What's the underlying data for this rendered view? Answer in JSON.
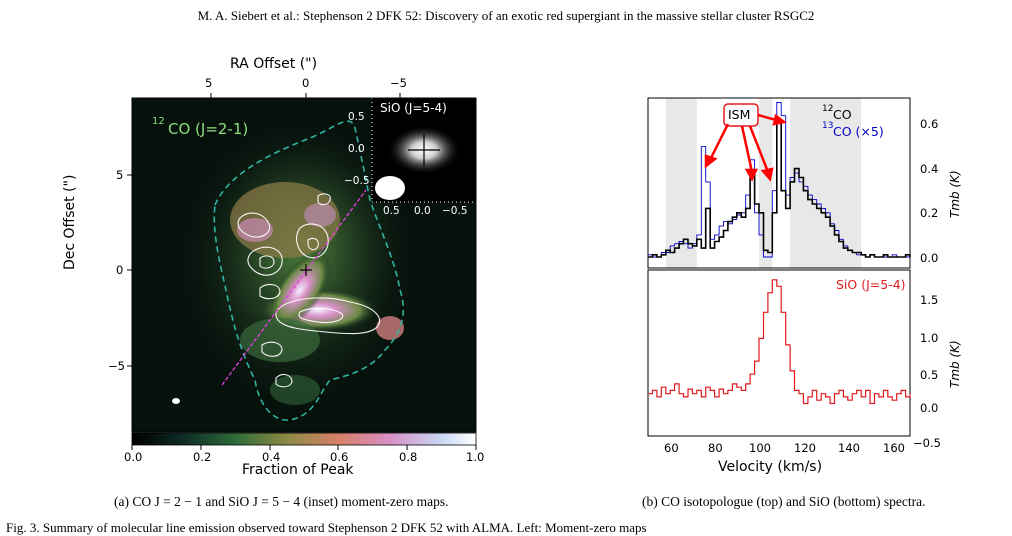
{
  "header": "M. A. Siebert et al.: Stephenson 2 DFK 52: Discovery of an exotic red supergiant in the massive stellar cluster RSGC2",
  "left_panel": {
    "top_axis_label": "RA Offset (\")",
    "top_ticks": [
      "5",
      "0",
      "−5"
    ],
    "left_axis_label": "Dec Offset (\")",
    "left_ticks": [
      "5",
      "0",
      "−5"
    ],
    "map_label_prefix": "12",
    "map_label": "CO (J=2-1)",
    "inset_label": "SiO (J=5-4)",
    "inset_y_ticks": [
      "0.5",
      "0.0",
      "−0.5"
    ],
    "inset_x_ticks": [
      "0.5",
      "0.0",
      "−0.5"
    ],
    "colorbar_ticks": [
      "0.0",
      "0.2",
      "0.4",
      "0.6",
      "0.8",
      "1.0"
    ],
    "colorbar_label": "Fraction of Peak",
    "caption": "(a) CO J = 2 − 1 and SiO J = 5 − 4 (inset) moment-zero maps."
  },
  "right_panel": {
    "ism_label": "ISM",
    "legend_12co_sup": "12",
    "legend_12co": "CO",
    "legend_13co_sup": "13",
    "legend_13co": "CO (×5)",
    "top_y_ticks": [
      "0.6",
      "0.4",
      "0.2",
      "0.0"
    ],
    "top_ylabel": "Tmb (K)",
    "sio_label": "SiO (J=5-4)",
    "bottom_y_ticks": [
      "1.5",
      "1.0",
      "0.5",
      "0.0",
      "−0.5"
    ],
    "bottom_ylabel": "Tmb (K)",
    "x_ticks": [
      "60",
      "80",
      "100",
      "120",
      "140",
      "160"
    ],
    "xlabel": "Velocity (km/s)",
    "caption": "(b) CO isotopologue (top) and SiO (bottom) spectra."
  },
  "figure_caption_start": "Fig. 3. Summary of molecular line emission observed toward Stephenson 2 DFK 52 with ALMA. Left: Moment-zero maps",
  "colors": {
    "co12": "#000000",
    "co13": "#0000cc",
    "sio": "#e31a1c",
    "contour": "#ffffff",
    "envelope": "#2fb3a3",
    "ism_arrow": "#ff0000"
  },
  "chart_data": [
    {
      "type": "line",
      "title": "",
      "xlabel": "Velocity (km/s)",
      "ylabel": "Tmb (K)",
      "xlim": [
        50,
        168
      ],
      "ylim": [
        -0.05,
        0.72
      ],
      "shaded_ranges": [
        [
          58,
          72
        ],
        [
          100,
          106
        ],
        [
          114,
          146
        ]
      ],
      "series": [
        {
          "name": "12CO",
          "x": [
            50,
            52,
            54,
            56,
            58,
            60,
            62,
            64,
            66,
            68,
            70,
            72,
            74,
            76,
            78,
            80,
            82,
            84,
            86,
            88,
            90,
            92,
            94,
            96,
            98,
            100,
            102,
            104,
            106,
            108,
            110,
            112,
            114,
            116,
            118,
            120,
            122,
            124,
            126,
            128,
            130,
            132,
            134,
            136,
            138,
            140,
            142,
            144,
            146,
            148,
            150,
            152,
            154,
            156,
            158,
            160,
            162,
            164,
            166,
            168
          ],
          "y": [
            0.0,
            0.01,
            0.0,
            0.01,
            0.03,
            0.02,
            0.04,
            0.06,
            0.08,
            0.06,
            0.05,
            0.08,
            0.04,
            0.22,
            0.04,
            0.07,
            0.09,
            0.12,
            0.16,
            0.18,
            0.2,
            0.18,
            0.22,
            0.38,
            0.24,
            0.2,
            0.03,
            0.02,
            0.2,
            0.62,
            0.3,
            0.22,
            0.34,
            0.4,
            0.36,
            0.3,
            0.26,
            0.24,
            0.22,
            0.2,
            0.18,
            0.14,
            0.1,
            0.07,
            0.04,
            0.03,
            0.02,
            0.02,
            0.01,
            0.0,
            0.01,
            0.0,
            0.0,
            0.01,
            0.0,
            0.0,
            0.0,
            0.0,
            0.01,
            0.0
          ]
        },
        {
          "name": "13CO (×5)",
          "x": [
            50,
            52,
            54,
            56,
            58,
            60,
            62,
            64,
            66,
            68,
            70,
            72,
            74,
            76,
            78,
            80,
            82,
            84,
            86,
            88,
            90,
            92,
            94,
            96,
            98,
            100,
            102,
            104,
            106,
            108,
            110,
            112,
            114,
            116,
            118,
            120,
            122,
            124,
            126,
            128,
            130,
            132,
            134,
            136,
            138,
            140,
            142,
            144,
            146,
            148,
            150,
            152,
            154,
            156,
            158,
            160,
            162,
            164,
            166,
            168
          ],
          "y": [
            0.01,
            0.0,
            0.0,
            0.02,
            0.02,
            0.05,
            0.06,
            0.07,
            0.06,
            0.04,
            0.06,
            0.1,
            0.5,
            0.34,
            0.08,
            0.1,
            0.14,
            0.16,
            0.15,
            0.17,
            0.19,
            0.2,
            0.28,
            0.44,
            0.2,
            0.1,
            0.0,
            0.0,
            0.3,
            0.7,
            0.64,
            0.28,
            0.36,
            0.38,
            0.34,
            0.32,
            0.28,
            0.26,
            0.24,
            0.22,
            0.2,
            0.15,
            0.12,
            0.08,
            0.05,
            0.03,
            0.02,
            0.01,
            0.01,
            0.0,
            0.01,
            0.0,
            0.0,
            0.0,
            0.0,
            0.01,
            0.0,
            0.0,
            0.0,
            0.0
          ]
        }
      ]
    },
    {
      "type": "line",
      "title": "",
      "xlabel": "Velocity (km/s)",
      "ylabel": "Tmb (K)",
      "xlim": [
        50,
        168
      ],
      "ylim": [
        -0.6,
        1.95
      ],
      "series": [
        {
          "name": "SiO (J=5-4)",
          "x": [
            50,
            52,
            54,
            56,
            58,
            60,
            62,
            64,
            66,
            68,
            70,
            72,
            74,
            76,
            78,
            80,
            82,
            84,
            86,
            88,
            90,
            92,
            94,
            96,
            98,
            100,
            102,
            104,
            106,
            108,
            110,
            112,
            114,
            116,
            118,
            120,
            122,
            124,
            126,
            128,
            130,
            132,
            134,
            136,
            138,
            140,
            142,
            144,
            146,
            148,
            150,
            152,
            154,
            156,
            158,
            160,
            162,
            164,
            166,
            168
          ],
          "y": [
            0.05,
            0.1,
            0.0,
            0.15,
            0.05,
            0.1,
            0.2,
            0.05,
            0.0,
            0.12,
            0.05,
            0.1,
            0.0,
            0.15,
            0.1,
            0.0,
            0.12,
            0.05,
            0.1,
            0.2,
            0.15,
            0.1,
            0.2,
            0.35,
            0.55,
            0.9,
            1.3,
            1.6,
            1.8,
            1.7,
            1.3,
            0.8,
            0.4,
            0.1,
            0.05,
            -0.1,
            0.0,
            0.1,
            -0.05,
            0.05,
            0.0,
            -0.1,
            0.05,
            0.1,
            0.0,
            -0.05,
            0.05,
            0.1,
            0.0,
            0.1,
            -0.1,
            0.05,
            0.0,
            0.1,
            0.0,
            -0.05,
            0.05,
            0.1,
            0.0,
            0.05
          ]
        }
      ]
    }
  ]
}
